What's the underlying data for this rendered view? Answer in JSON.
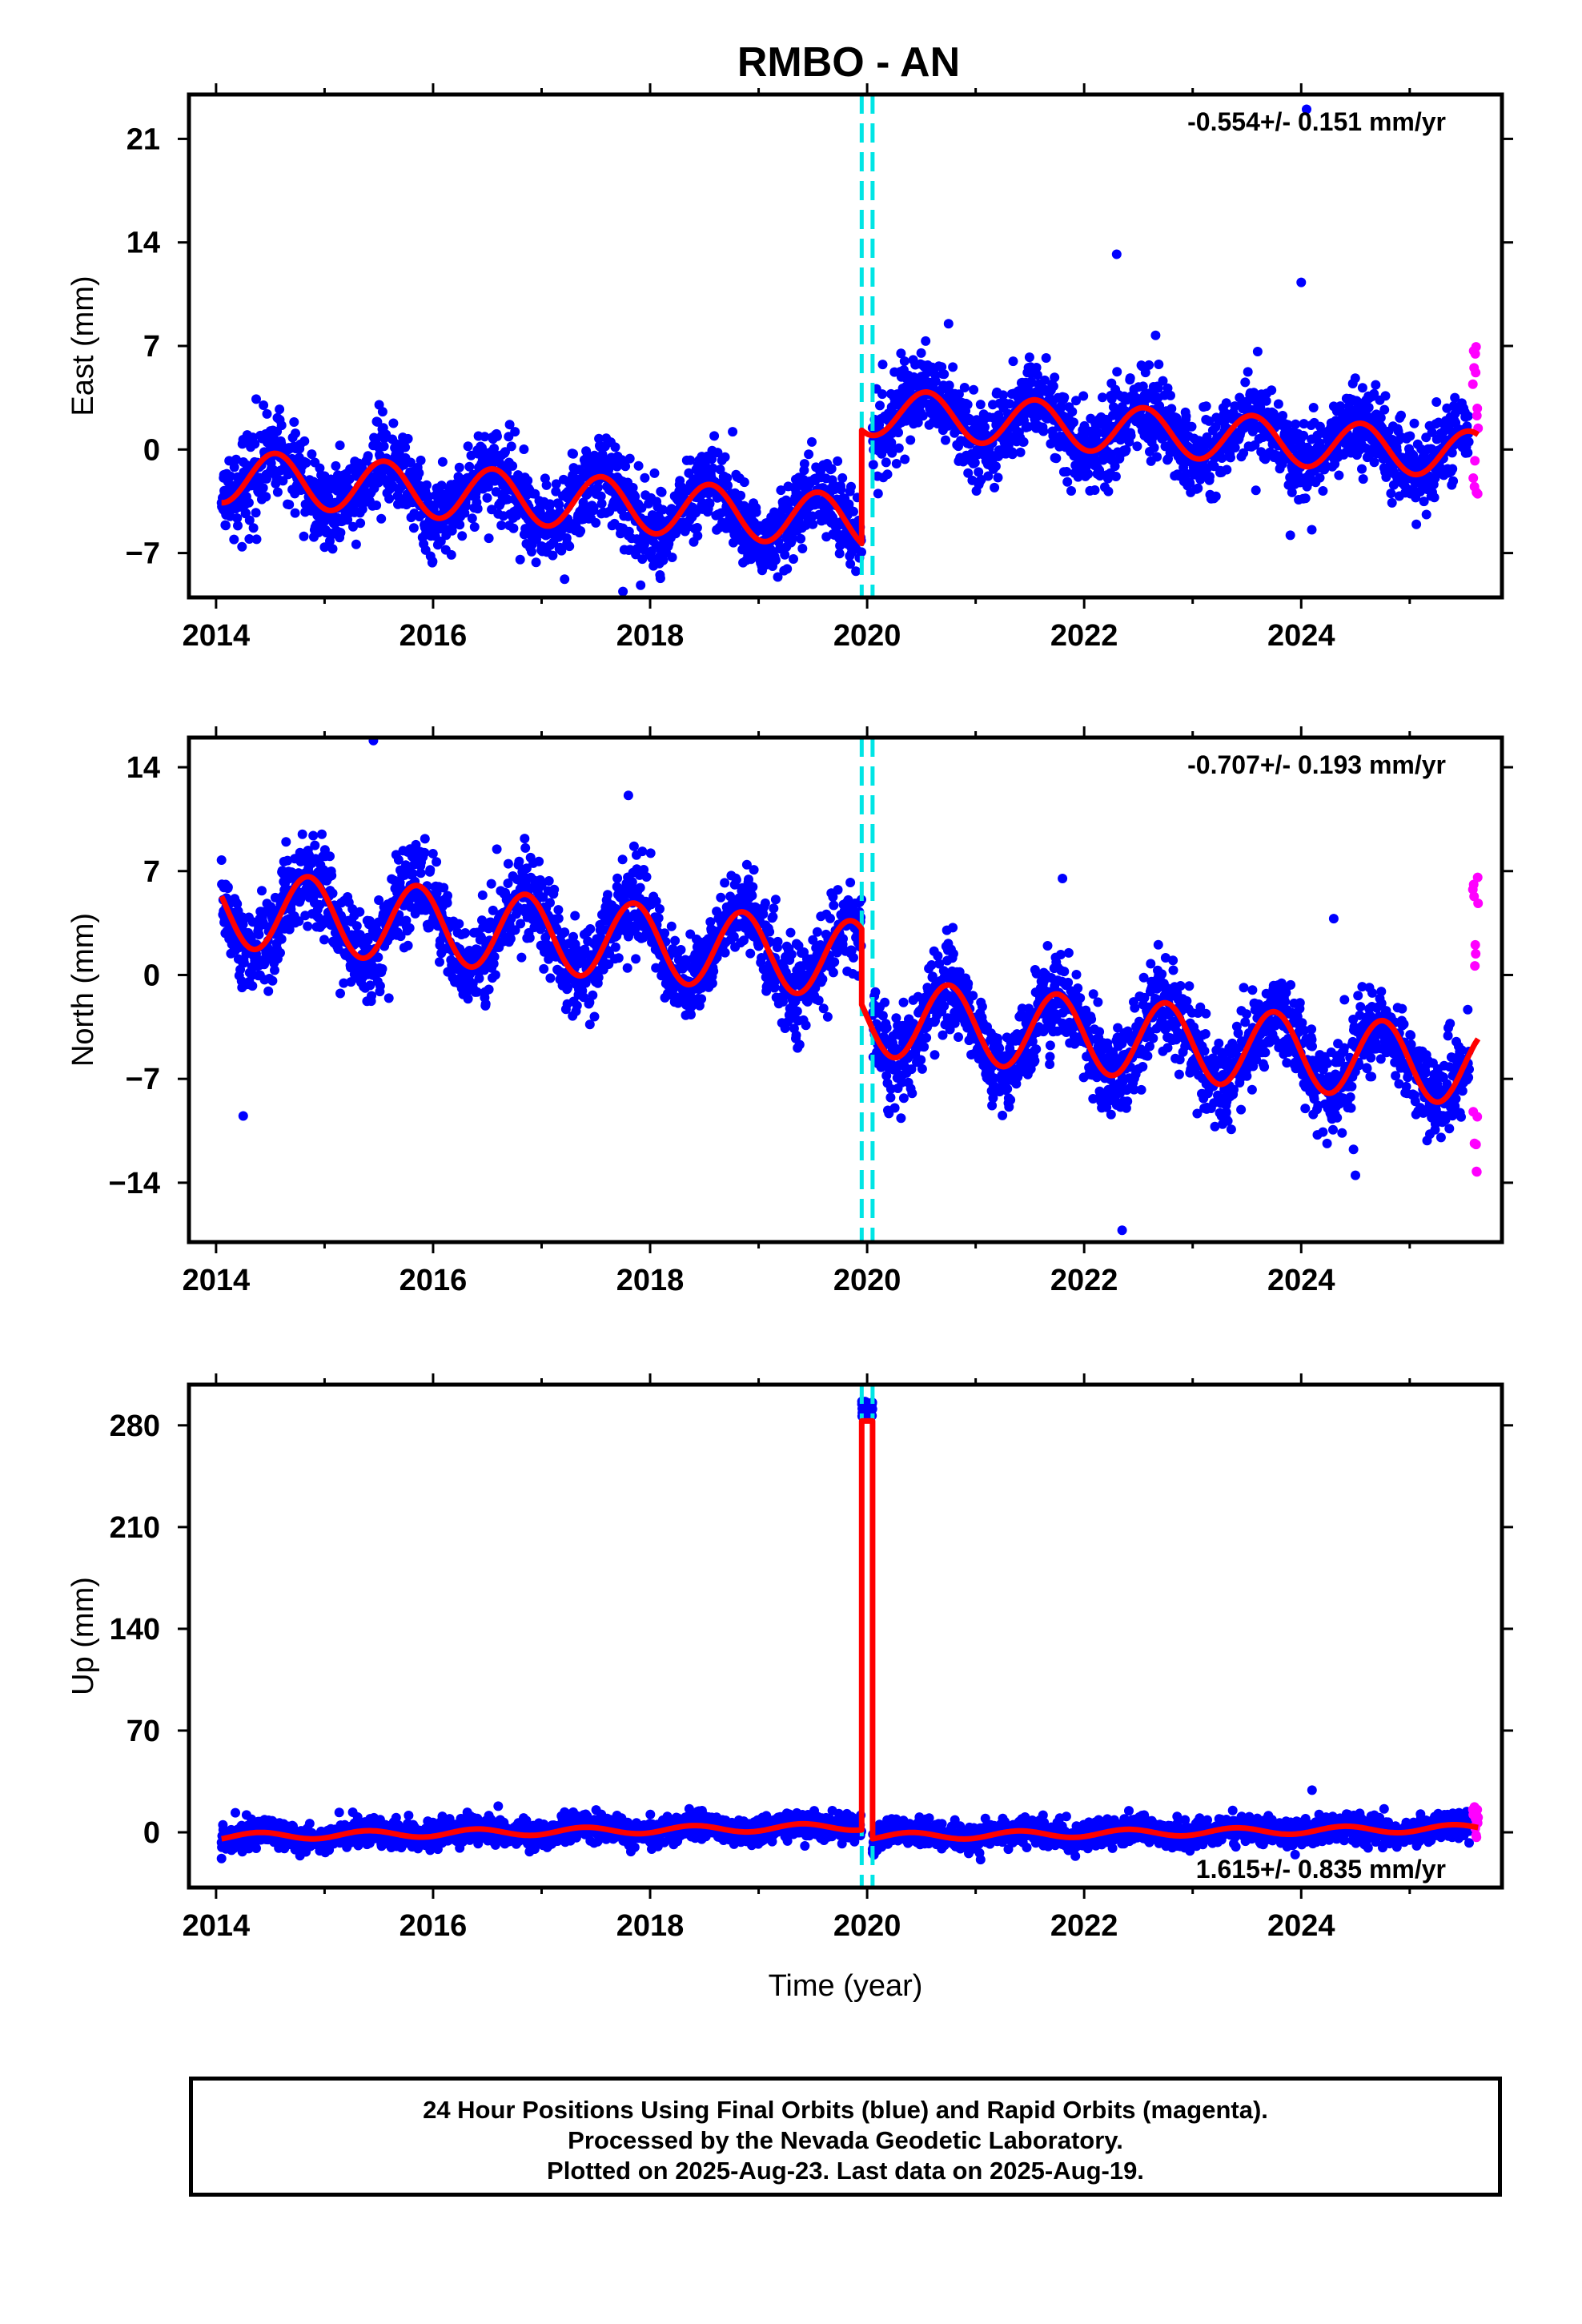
{
  "title": "RMBO - AN",
  "colors": {
    "final_orbits": "#0000ff",
    "rapid_orbits": "#ff00ff",
    "model_fit": "#ff0000",
    "offset_lines": "#00e5e5"
  },
  "chart_data": [
    {
      "type": "scatter",
      "component": "East",
      "ylabel": "East (mm)",
      "xlabel": "",
      "rate_text": "-0.554+/- 0.151 mm/yr",
      "xlim": [
        2013.75,
        2025.85
      ],
      "ylim": [
        -10,
        24
      ],
      "xticks": [
        2014,
        2016,
        2018,
        2020,
        2022,
        2024
      ],
      "yticks": [
        -7,
        0,
        7,
        14,
        21
      ],
      "offsets_x": [
        2019.95,
        2020.05
      ],
      "final_orbits": {
        "start": 2014.05,
        "end": 2025.55,
        "seasonal_amplitude": 1.8,
        "noise": 1.4
      },
      "rapid_orbits": {
        "start": 2025.55,
        "end": 2025.63,
        "range": [
          -3.5,
          7
        ]
      },
      "model_segments": [
        {
          "start": 2014.05,
          "end": 2019.95,
          "start_value": -1.8,
          "end_value": -4.9,
          "annual_amplitude": 1.8,
          "phase_year": 2014.55
        },
        {
          "start": 2019.95,
          "end": 2025.63,
          "start_value": 2.6,
          "end_value": -0.4,
          "annual_amplitude": 1.6,
          "phase_year": 2020.55
        }
      ],
      "outliers": [
        [
          2024.05,
          23
        ],
        [
          2022.3,
          13.2
        ],
        [
          2024.0,
          11.3
        ],
        [
          2020.75,
          8.5
        ],
        [
          2023.9,
          -5.8
        ],
        [
          2017.75,
          -9.6
        ],
        [
          2015.0,
          -6.6
        ]
      ]
    },
    {
      "type": "scatter",
      "component": "North",
      "ylabel": "North (mm)",
      "xlabel": "",
      "rate_text": "-0.707+/- 0.193 mm/yr",
      "xlim": [
        2013.75,
        2025.85
      ],
      "ylim": [
        -18,
        16
      ],
      "xticks": [
        2014,
        2016,
        2018,
        2020,
        2022,
        2024
      ],
      "yticks": [
        -14,
        -7,
        0,
        7,
        14
      ],
      "offsets_x": [
        2019.95,
        2020.05
      ],
      "final_orbits": {
        "start": 2014.05,
        "end": 2025.55,
        "seasonal_amplitude": 2.6,
        "noise": 1.5
      },
      "rapid_orbits": {
        "start": 2025.55,
        "end": 2025.63,
        "range": [
          -13.5,
          7
        ]
      },
      "model_segments": [
        {
          "start": 2014.05,
          "end": 2019.95,
          "start_value": 4.5,
          "end_value": 1.0,
          "annual_amplitude": 2.6,
          "phase_year": 2014.85
        },
        {
          "start": 2019.95,
          "end": 2025.63,
          "start_value": -2.8,
          "end_value": -6.2,
          "annual_amplitude": 2.6,
          "phase_year": 2020.75
        }
      ],
      "outliers": [
        [
          2015.45,
          15.8
        ],
        [
          2014.25,
          -9.5
        ],
        [
          2022.35,
          -17.2
        ],
        [
          2017.8,
          12.1
        ],
        [
          2024.3,
          3.8
        ],
        [
          2021.8,
          6.5
        ],
        [
          2024.5,
          -13.5
        ]
      ]
    },
    {
      "type": "scatter",
      "component": "Up",
      "ylabel": "Up (mm)",
      "xlabel": "Time (year)",
      "rate_text": "1.615+/- 0.835 mm/yr",
      "xlim": [
        2013.75,
        2025.85
      ],
      "ylim": [
        -38,
        308
      ],
      "xticks": [
        2014,
        2016,
        2018,
        2020,
        2022,
        2024
      ],
      "yticks": [
        0,
        70,
        140,
        210,
        280
      ],
      "offsets_x": [
        2019.95,
        2020.05
      ],
      "final_orbits": {
        "start": 2014.05,
        "end": 2025.55,
        "seasonal_amplitude": 2.5,
        "noise": 4.5
      },
      "rapid_orbits": {
        "start": 2025.55,
        "end": 2025.63,
        "range": [
          -6,
          18
        ]
      },
      "model_segments": [
        {
          "start": 2014.05,
          "end": 2019.95,
          "start_value": -3,
          "end_value": 4,
          "annual_amplitude": 2.5,
          "phase_year": 2014.4
        },
        {
          "start": 2019.95,
          "end": 2020.05,
          "start_value": 283,
          "end_value": 283,
          "annual_amplitude": 0,
          "phase_year": 2020.0
        },
        {
          "start": 2020.05,
          "end": 2025.63,
          "start_value": -3,
          "end_value": 3,
          "annual_amplitude": 2.5,
          "phase_year": 2020.4
        }
      ],
      "spike": {
        "start": 2019.95,
        "end": 2020.05,
        "range": [
          285,
          298
        ]
      },
      "outliers": [
        [
          2014.05,
          -18
        ],
        [
          2020.05,
          -14
        ],
        [
          2016.6,
          18
        ],
        [
          2024.1,
          29
        ]
      ]
    }
  ],
  "footer": {
    "line1": "24 Hour Positions Using Final Orbits (blue) and Rapid Orbits (magenta).",
    "line2": "Processed by the Nevada Geodetic Laboratory.",
    "line3": "Plotted on 2025-Aug-23. Last data on 2025-Aug-19."
  }
}
